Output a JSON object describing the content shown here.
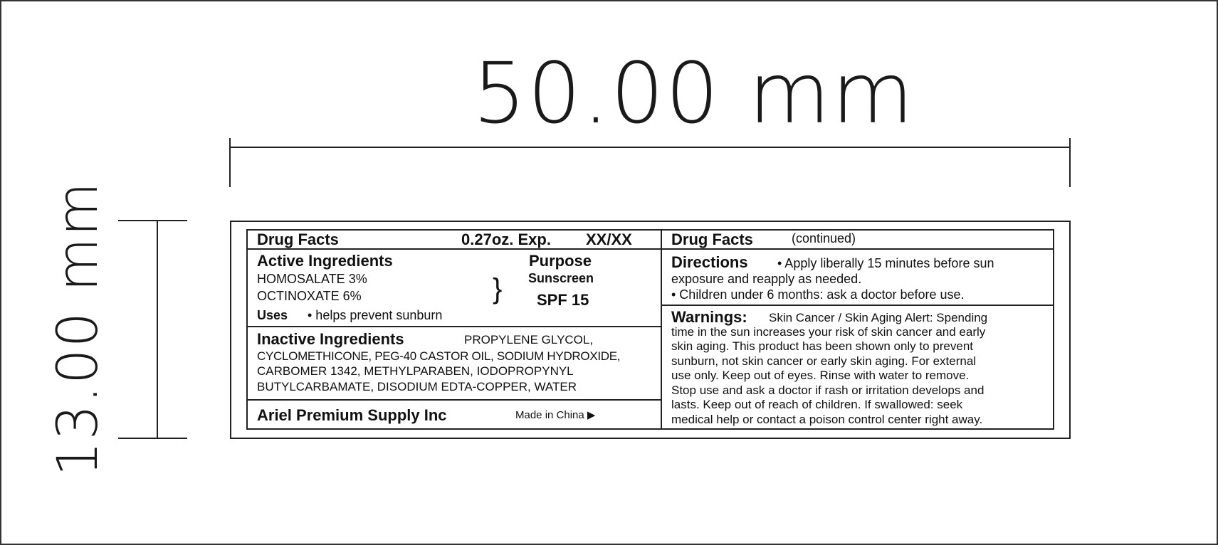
{
  "dimensions": {
    "width_label": "50.00 mm",
    "height_label": "13.00 mm"
  },
  "label": {
    "left": {
      "header": {
        "title": "Drug Facts",
        "net_wt_exp": "0.27oz. Exp.",
        "exp_value": "XX/XX"
      },
      "active": {
        "heading": "Active Ingredients",
        "ingredients": [
          "HOMOSALATE  3%",
          "OCTINOXATE  6%"
        ],
        "purpose_heading": "Purpose",
        "purpose": "Sunscreen",
        "spf": "SPF 15",
        "uses_heading": "Uses",
        "uses_text": "• helps prevent sunburn"
      },
      "inactive": {
        "heading": "Inactive Ingredients",
        "first": "PROPYLENE GLYCOL,",
        "lines": [
          "CYCLOMETHICONE, PEG-40 CASTOR OIL, SODIUM HYDROXIDE,",
          "CARBOMER 1342, METHYLPARABEN, IODOPROPYNYL",
          "BUTYLCARBAMATE, DISODIUM EDTA-COPPER, WATER"
        ]
      },
      "footer": {
        "company": "Ariel Premium Supply Inc",
        "origin": "Made in China"
      }
    },
    "right": {
      "header": {
        "title": "Drug Facts",
        "subtitle": "(continued)"
      },
      "directions": {
        "heading": "Directions",
        "first": "• Apply liberally 15 minutes before sun",
        "lines": [
          "exposure and reapply as needed.",
          "• Children under 6 months: ask a doctor before use."
        ]
      },
      "warnings": {
        "heading": "Warnings:",
        "first": "Skin Cancer / Skin Aging Alert: Spending",
        "lines": [
          "time in the sun increases your risk of skin cancer and early",
          "skin aging. This product has been shown only to prevent",
          "sunburn, not skin cancer or early skin aging. For external",
          "use only. Keep out of eyes. Rinse with water to remove.",
          "Stop use and ask a doctor if rash or irritation develops and",
          "lasts. Keep out of reach of children. If swallowed: seek",
          "medical help or contact a poison control center right away."
        ]
      }
    }
  }
}
